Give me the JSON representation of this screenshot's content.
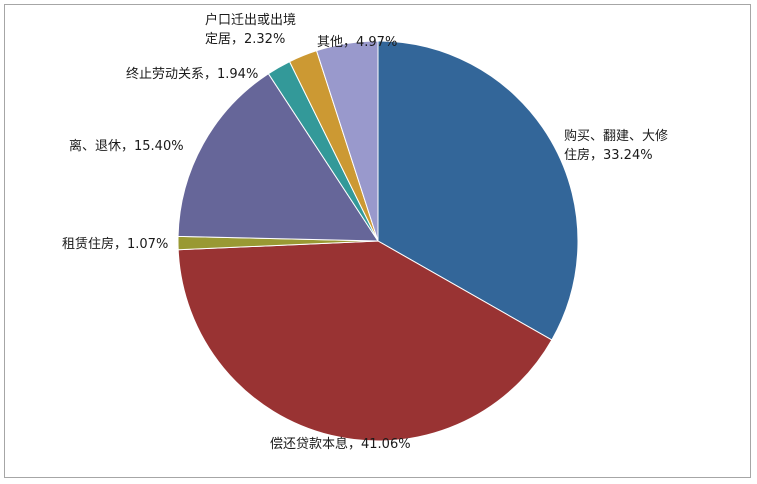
{
  "chart_data": {
    "type": "pie",
    "start_angle_deg": 0,
    "direction": "clockwise",
    "slices": [
      {
        "label_lines": [
          "购买、翻建、大修",
          "住房，33.24%"
        ],
        "category": "购买、翻建、大修住房",
        "value": 33.24,
        "color": "#336699"
      },
      {
        "label_lines": [
          "偿还贷款本息，41.06%"
        ],
        "category": "偿还贷款本息",
        "value": 41.06,
        "color": "#993333"
      },
      {
        "label_lines": [
          "租赁住房，1.07%"
        ],
        "category": "租赁住房",
        "value": 1.07,
        "color": "#999933"
      },
      {
        "label_lines": [
          "离、退休，15.40%"
        ],
        "category": "离、退休",
        "value": 15.4,
        "color": "#666699"
      },
      {
        "label_lines": [
          "终止劳动关系，1.94%"
        ],
        "category": "终止劳动关系",
        "value": 1.94,
        "color": "#339999"
      },
      {
        "label_lines": [
          "户口迁出或出境",
          "定居，2.32%"
        ],
        "category": "户口迁出或出境定居",
        "value": 2.32,
        "color": "#cc9933"
      },
      {
        "label_lines": [
          "其他，4.97%"
        ],
        "category": "其他",
        "value": 4.97,
        "color": "#9999cc"
      }
    ]
  }
}
